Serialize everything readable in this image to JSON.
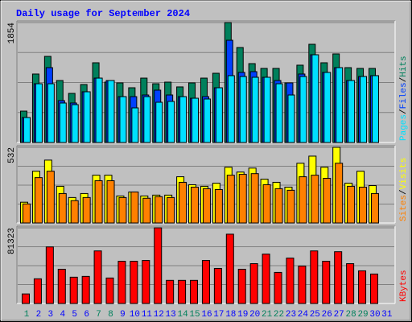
{
  "chart_data": [
    {
      "type": "bar",
      "title": "Daily usage for September 2024",
      "categories": [
        "1",
        "2",
        "3",
        "4",
        "5",
        "6",
        "7",
        "8",
        "9",
        "10",
        "11",
        "12",
        "13",
        "14",
        "15",
        "16",
        "17",
        "18",
        "19",
        "20",
        "21",
        "22",
        "23",
        "24",
        "25",
        "26",
        "27",
        "28",
        "29",
        "30",
        "31"
      ],
      "category_colors": [
        "#00805c",
        "#0000ff",
        "#0000ff",
        "#0000ff",
        "#0000ff",
        "#0000ff",
        "#00805c",
        "#00805c",
        "#0000ff",
        "#0000ff",
        "#0000ff",
        "#0000ff",
        "#0000ff",
        "#00805c",
        "#00805c",
        "#0000ff",
        "#0000ff",
        "#0000ff",
        "#0000ff",
        "#0000ff",
        "#00805c",
        "#00805c",
        "#0000ff",
        "#0000ff",
        "#0000ff",
        "#0000ff",
        "#0000ff",
        "#00805c",
        "#00805c",
        "#0000ff",
        "#0000ff"
      ],
      "legend_separator": "/",
      "ylim": [
        0,
        1854
      ],
      "yticks": [
        1854
      ],
      "series": [
        {
          "name": "Hits",
          "color": "#00805c",
          "values": [
            485,
            1058,
            1331,
            958,
            759,
            896,
            1232,
            933,
            921,
            846,
            995,
            908,
            933,
            859,
            921,
            995,
            1070,
            1854,
            1468,
            1219,
            1145,
            1145,
            921,
            1195,
            1518,
            1232,
            1369,
            1157,
            1145,
            1145,
            null
          ]
        },
        {
          "name": "Files",
          "color": "#0040ff",
          "values": [
            386,
            908,
            1157,
            647,
            610,
            784,
            995,
            958,
            709,
            709,
            734,
            809,
            734,
            709,
            684,
            709,
            846,
            1580,
            1083,
            1095,
            1008,
            958,
            921,
            1058,
            1356,
            1083,
            1157,
            958,
            1020,
            1033,
            null
          ]
        },
        {
          "name": "Pages",
          "color": "#00e0ff",
          "values": [
            386,
            908,
            908,
            610,
            585,
            784,
            995,
            958,
            709,
            535,
            709,
            622,
            635,
            709,
            684,
            672,
            846,
            1033,
            1020,
            1008,
            1008,
            908,
            734,
            1020,
            1356,
            1083,
            1157,
            958,
            1020,
            1033,
            null
          ]
        }
      ]
    },
    {
      "type": "bar",
      "legend_separator": "/",
      "ylim": [
        0,
        532
      ],
      "yticks": [
        532
      ],
      "series": [
        {
          "name": "Visits",
          "color": "#ffff00",
          "values": [
            146,
            364,
            442,
            258,
            179,
            207,
            336,
            336,
            190,
            218,
            190,
            196,
            196,
            325,
            269,
            258,
            280,
            392,
            358,
            386,
            308,
            286,
            252,
            420,
            470,
            392,
            532,
            280,
            364,
            263,
            null
          ]
        },
        {
          "name": "Sites",
          "color": "#ff8000",
          "values": [
            134,
            319,
            364,
            207,
            157,
            179,
            297,
            297,
            179,
            218,
            174,
            185,
            179,
            286,
            252,
            241,
            235,
            336,
            342,
            347,
            269,
            241,
            230,
            325,
            336,
            314,
            420,
            258,
            252,
            207,
            null
          ]
        }
      ]
    },
    {
      "type": "bar",
      "ylim": [
        0,
        81323
      ],
      "yticks": [
        81323
      ],
      "series": [
        {
          "name": "KBytes",
          "color": "#ff0000",
          "values": [
            10272,
            26536,
            60776,
            36808,
            28248,
            29104,
            56496,
            27392,
            45368,
            45368,
            46224,
            81323,
            24824,
            24824,
            24824,
            46224,
            37664,
            74472,
            36808,
            42800,
            53072,
            33384,
            48792,
            40232,
            56496,
            45368,
            55640,
            42800,
            35096,
            31672,
            null
          ]
        }
      ]
    }
  ]
}
